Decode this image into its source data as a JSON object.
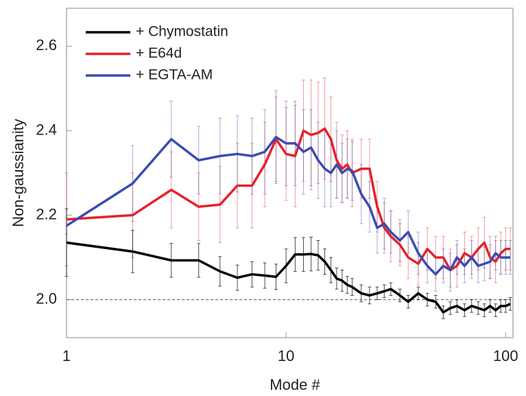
{
  "chart_data": {
    "type": "line",
    "xlabel": "Mode #",
    "ylabel": "Non-gaussianity",
    "xscale": "log",
    "xlim": [
      1,
      108
    ],
    "ylim": [
      1.91,
      2.69
    ],
    "xticks": [
      1,
      10,
      100
    ],
    "yticks": [
      {
        "value": 2,
        "label": "2.0"
      },
      {
        "value": 2.2,
        "label": "2.2"
      },
      {
        "value": 2.4,
        "label": "2.4"
      },
      {
        "value": 2.6,
        "label": "2.6"
      }
    ],
    "hline": 2,
    "legend": "upper left",
    "x": [
      1,
      2,
      3,
      4,
      5,
      6,
      7,
      8,
      9,
      10,
      11,
      12,
      13,
      14,
      15,
      16,
      17,
      18,
      19,
      20,
      22,
      24,
      26,
      28,
      30,
      33,
      36,
      40,
      44,
      48,
      52,
      56,
      60,
      65,
      70,
      75,
      80,
      85,
      90,
      95,
      100,
      105
    ],
    "series": [
      {
        "name": "+ Chymostatin",
        "color": "#000000",
        "values": [
          2.135,
          2.114,
          2.093,
          2.093,
          2.067,
          2.052,
          2.06,
          2.057,
          2.054,
          2.08,
          2.107,
          2.107,
          2.108,
          2.105,
          2.09,
          2.07,
          2.05,
          2.045,
          2.035,
          2.03,
          2.015,
          2.01,
          2.015,
          2.02,
          2.025,
          2.01,
          1.995,
          2.015,
          2.0,
          1.995,
          1.97,
          1.98,
          1.985,
          1.975,
          1.985,
          1.98,
          1.975,
          1.985,
          1.975,
          1.985,
          1.985,
          1.99
        ],
        "errors": [
          0.08,
          0.05,
          0.04,
          0.04,
          0.035,
          0.03,
          0.03,
          0.03,
          0.03,
          0.04,
          0.04,
          0.04,
          0.04,
          0.035,
          0.03,
          0.03,
          0.025,
          0.025,
          0.02,
          0.02,
          0.02,
          0.02,
          0.015,
          0.015,
          0.015,
          0.015,
          0.015,
          0.015,
          0.015,
          0.015,
          0.015,
          0.015,
          0.015,
          0.015,
          0.015,
          0.015,
          0.015,
          0.015,
          0.015,
          0.015,
          0.015,
          0.015
        ]
      },
      {
        "name": "+ E64d",
        "color": "#e8202a",
        "values": [
          2.19,
          2.2,
          2.26,
          2.22,
          2.225,
          2.27,
          2.27,
          2.32,
          2.38,
          2.345,
          2.34,
          2.4,
          2.39,
          2.395,
          2.405,
          2.38,
          2.33,
          2.31,
          2.32,
          2.3,
          2.31,
          2.31,
          2.22,
          2.17,
          2.15,
          2.13,
          2.1,
          2.085,
          2.12,
          2.1,
          2.1,
          2.07,
          2.08,
          2.11,
          2.1,
          2.12,
          2.135,
          2.1,
          2.09,
          2.11,
          2.12,
          2.12
        ],
        "errors": [
          0.11,
          0.1,
          0.09,
          0.08,
          0.09,
          0.1,
          0.1,
          0.1,
          0.1,
          0.11,
          0.12,
          0.12,
          0.13,
          0.12,
          0.12,
          0.1,
          0.09,
          0.08,
          0.08,
          0.08,
          0.07,
          0.07,
          0.06,
          0.06,
          0.06,
          0.05,
          0.05,
          0.05,
          0.05,
          0.05,
          0.05,
          0.05,
          0.05,
          0.05,
          0.05,
          0.05,
          0.06,
          0.05,
          0.05,
          0.05,
          0.05,
          0.05
        ]
      },
      {
        "name": "+ EGTA-AM",
        "color": "#3a4bb0",
        "values": [
          2.175,
          2.275,
          2.38,
          2.33,
          2.34,
          2.345,
          2.34,
          2.35,
          2.385,
          2.37,
          2.37,
          2.35,
          2.36,
          2.33,
          2.31,
          2.3,
          2.32,
          2.3,
          2.31,
          2.305,
          2.25,
          2.22,
          2.17,
          2.18,
          2.16,
          2.14,
          2.16,
          2.11,
          2.08,
          2.06,
          2.08,
          2.07,
          2.1,
          2.08,
          2.1,
          2.08,
          2.085,
          2.09,
          2.11,
          2.1,
          2.1,
          2.1
        ],
        "errors": [
          0.02,
          0.09,
          0.09,
          0.08,
          0.09,
          0.09,
          0.09,
          0.1,
          0.11,
          0.1,
          0.1,
          0.1,
          0.09,
          0.09,
          0.09,
          0.08,
          0.08,
          0.07,
          0.07,
          0.07,
          0.07,
          0.06,
          0.06,
          0.06,
          0.05,
          0.05,
          0.05,
          0.05,
          0.04,
          0.04,
          0.04,
          0.04,
          0.04,
          0.04,
          0.04,
          0.04,
          0.04,
          0.04,
          0.04,
          0.04,
          0.04,
          0.04
        ]
      }
    ]
  }
}
